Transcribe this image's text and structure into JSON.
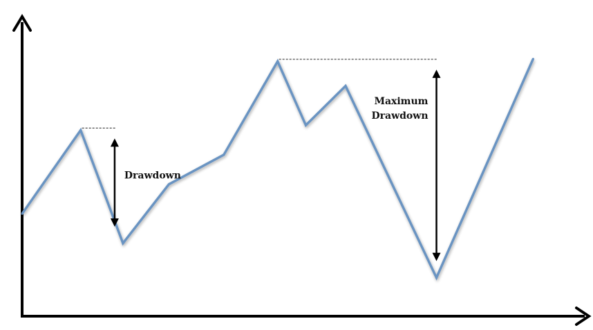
{
  "chart_data": {
    "type": "line",
    "title": "",
    "xlabel": "",
    "ylabel": "",
    "axes_ticks": false,
    "grid": false,
    "series": [
      {
        "color": "#6a94c2",
        "points": [
          [
            0.0,
            0.4
          ],
          [
            0.112,
            0.74
          ],
          [
            0.193,
            0.28
          ],
          [
            0.281,
            0.52
          ],
          [
            0.386,
            0.64
          ],
          [
            0.489,
            1.02
          ],
          [
            0.543,
            0.76
          ],
          [
            0.619,
            0.92
          ],
          [
            0.793,
            0.14
          ],
          [
            0.978,
            1.03
          ]
        ]
      }
    ],
    "annotations": [
      {
        "name": "drawdown",
        "lines": [
          "Drawdown"
        ],
        "peak_point": 1,
        "trough_point": 2
      },
      {
        "name": "maximum-drawdown",
        "lines": [
          "Maximum",
          "Drawdown"
        ],
        "peak_point": 5,
        "trough_point": 8
      }
    ]
  }
}
